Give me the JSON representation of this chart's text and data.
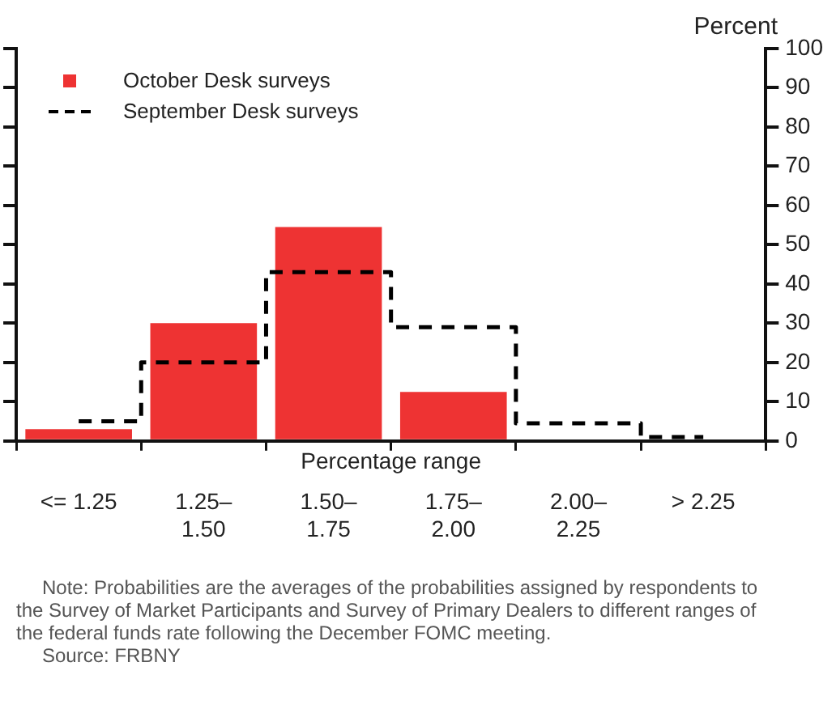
{
  "chart_data": {
    "type": "bar",
    "xlabel": "Percentage range",
    "ylabel": "Percent",
    "categories": [
      "<= 1.25",
      "1.25–1.50",
      "1.50–1.75",
      "1.75–2.00",
      "2.00–2.25",
      "> 2.25"
    ],
    "series": [
      {
        "name": "October Desk surveys",
        "color": "#ee3333",
        "values": [
          3,
          30,
          54.5,
          12.5,
          0,
          0
        ]
      },
      {
        "name": "September Desk surveys",
        "type": "step",
        "color": "#000000",
        "line_style": "dashed",
        "values": [
          5,
          20,
          43,
          29,
          4.5,
          1
        ]
      }
    ],
    "ylim": [
      0,
      100
    ],
    "yticks": [
      0,
      10,
      20,
      30,
      40,
      50,
      60,
      70,
      80,
      90,
      100
    ],
    "grid": false,
    "legend": "top left",
    "annotations": [
      "Note: Probabilities are the averages of the probabilities assigned by respondents to the Survey of Market Participants and Survey of Primary Dealers to different ranges of the federal funds rate following the December FOMC meeting.",
      "Source: FRBNY"
    ]
  }
}
